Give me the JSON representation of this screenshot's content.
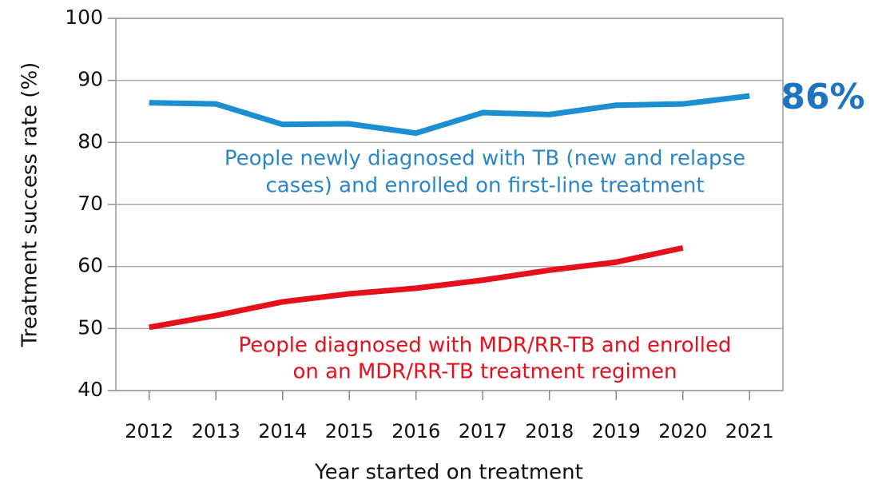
{
  "chart_data": {
    "type": "line",
    "x": [
      2012,
      2013,
      2014,
      2015,
      2016,
      2017,
      2018,
      2019,
      2020,
      2021
    ],
    "xlim": [
      2011.5,
      2021.5
    ],
    "xticks": [
      2012,
      2013,
      2014,
      2015,
      2016,
      2017,
      2018,
      2019,
      2020,
      2021
    ],
    "ylim": [
      40,
      100
    ],
    "yticks": [
      40,
      50,
      60,
      70,
      80,
      90,
      100
    ],
    "grid": true,
    "x_label": "Year started on treatment",
    "y_label": "Treatment success rate (%)",
    "series": [
      {
        "name": "People newly diagnosed with TB (new and relapse cases) and enrolled on first-line treatment",
        "color": "#1b8fd2",
        "values": [
          86.4,
          86.2,
          82.9,
          83.0,
          81.5,
          84.8,
          84.5,
          86.0,
          86.2,
          87.5
        ]
      },
      {
        "name": "People diagnosed with MDR/RR-TB and enrolled on an MDR/RR-TB treatment regimen",
        "color": "#e5101c",
        "values": [
          50.2,
          52.1,
          54.3,
          55.6,
          56.5,
          57.8,
          59.4,
          60.7,
          63.0,
          null
        ]
      }
    ],
    "annotations": [
      {
        "text": "86%",
        "color": "#1f74c0"
      },
      {
        "text": "People newly diagnosed with TB (new and relapse",
        "color": "#2a86c8"
      },
      {
        "text": "cases) and enrolled on first-line treatment",
        "color": "#2a86c8"
      },
      {
        "text": "People diagnosed with MDR/RR-TB and enrolled",
        "color": "#e5101c"
      },
      {
        "text": "on an MDR/RR-TB treatment regimen",
        "color": "#e5101c"
      }
    ]
  }
}
